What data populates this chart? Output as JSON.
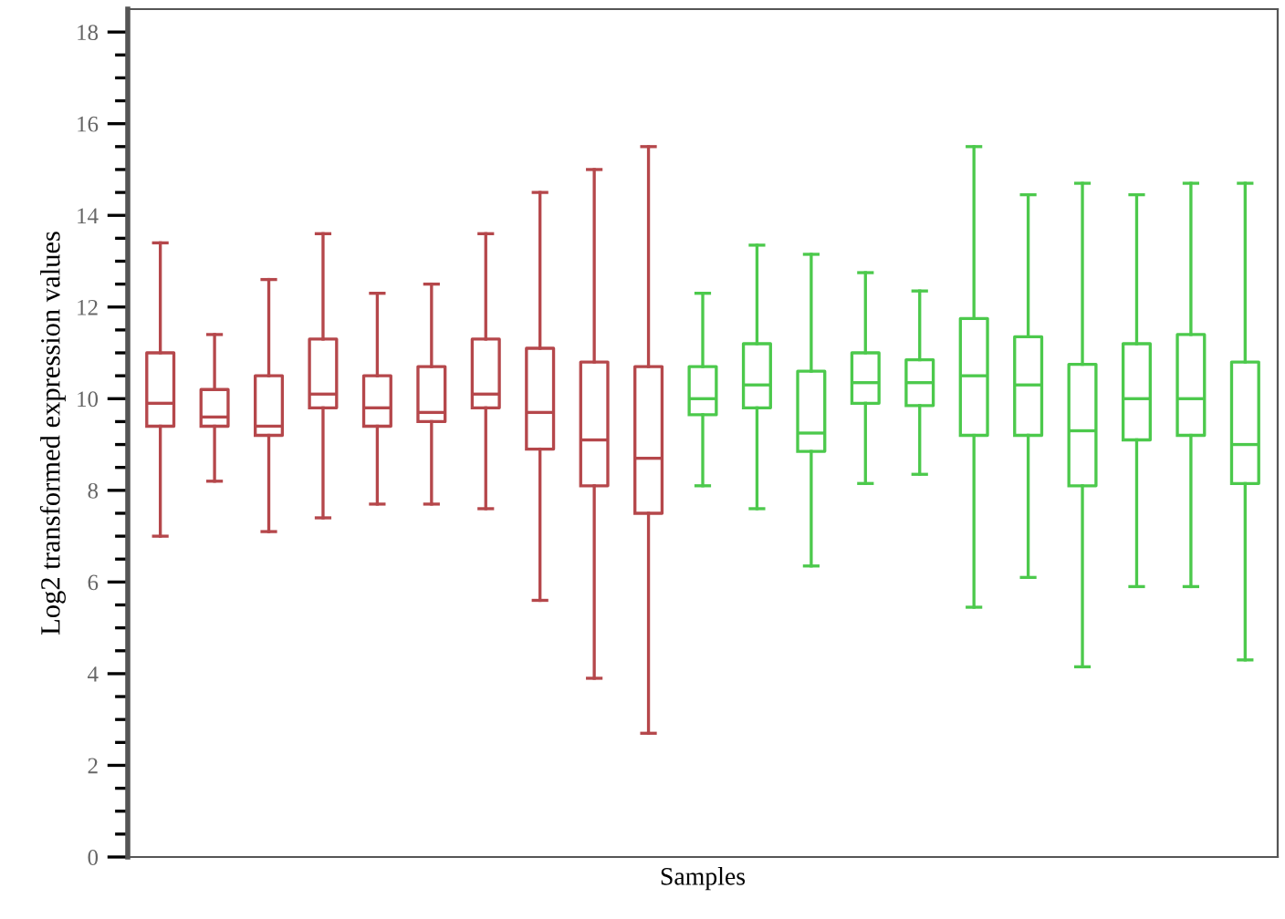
{
  "chart_data": {
    "type": "box",
    "xlabel": "Samples",
    "ylabel": "Log2 transformed expression values",
    "categories": [
      null,
      null,
      null,
      null,
      null,
      null,
      null,
      null,
      null,
      null,
      null,
      null,
      null,
      null,
      null,
      null,
      null,
      null,
      null,
      null,
      null
    ],
    "ylim": [
      0,
      18.5
    ],
    "yticks": [
      0,
      {
        "value": 0.5,
        "label": null
      },
      {
        "value": 1,
        "label": null
      },
      {
        "value": 1.5,
        "label": null
      },
      2,
      {
        "value": 2.5,
        "label": null
      },
      {
        "value": 3,
        "label": null
      },
      {
        "value": 3.5,
        "label": null
      },
      4,
      {
        "value": 4.5,
        "label": null
      },
      {
        "value": 5,
        "label": null
      },
      {
        "value": 5.5,
        "label": null
      },
      6,
      {
        "value": 6.5,
        "label": null
      },
      {
        "value": 7,
        "label": null
      },
      {
        "value": 7.5,
        "label": null
      },
      8,
      {
        "value": 8.5,
        "label": null
      },
      {
        "value": 9,
        "label": null
      },
      {
        "value": 9.5,
        "label": null
      },
      10,
      {
        "value": 10.5,
        "label": null
      },
      {
        "value": 11,
        "label": null
      },
      {
        "value": 11.5,
        "label": null
      },
      12,
      {
        "value": 12.5,
        "label": null
      },
      {
        "value": 13,
        "label": null
      },
      {
        "value": 13.5,
        "label": null
      },
      14,
      {
        "value": 14.5,
        "label": null
      },
      {
        "value": 15,
        "label": null
      },
      {
        "value": 15.5,
        "label": null
      },
      16,
      {
        "value": 16.5,
        "label": null
      },
      {
        "value": 17,
        "label": null
      },
      {
        "value": 17.5,
        "label": null
      },
      18
    ],
    "tick_labels": "y",
    "grid": false,
    "series": [
      {
        "color": "#b5474b",
        "boxes": [
          {
            "low": 7.0,
            "q1": 9.4,
            "median": 9.9,
            "q3": 11.0,
            "high": 13.4
          },
          {
            "low": 8.2,
            "q1": 9.4,
            "median": 9.6,
            "q3": 10.2,
            "high": 11.4
          },
          {
            "low": 7.1,
            "q1": 9.2,
            "median": 9.4,
            "q3": 10.5,
            "high": 12.6
          },
          {
            "low": 7.4,
            "q1": 9.8,
            "median": 10.1,
            "q3": 11.3,
            "high": 13.6
          },
          {
            "low": 7.7,
            "q1": 9.4,
            "median": 9.8,
            "q3": 10.5,
            "high": 12.3
          },
          {
            "low": 7.7,
            "q1": 9.5,
            "median": 9.7,
            "q3": 10.7,
            "high": 12.5
          },
          {
            "low": 7.6,
            "q1": 9.8,
            "median": 10.1,
            "q3": 11.3,
            "high": 13.6
          },
          {
            "low": 5.6,
            "q1": 8.9,
            "median": 9.7,
            "q3": 11.1,
            "high": 14.5
          },
          {
            "low": 3.9,
            "q1": 8.1,
            "median": 9.1,
            "q3": 10.8,
            "high": 15.0
          },
          {
            "low": 2.7,
            "q1": 7.5,
            "median": 8.7,
            "q3": 10.7,
            "high": 15.5
          },
          null,
          null,
          null,
          null,
          null,
          null,
          null,
          null,
          null,
          null,
          null
        ]
      },
      {
        "color": "#4cc94c",
        "boxes": [
          null,
          null,
          null,
          null,
          null,
          null,
          null,
          null,
          null,
          null,
          {
            "low": 8.1,
            "q1": 9.65,
            "median": 10.0,
            "q3": 10.7,
            "high": 12.3
          },
          {
            "low": 7.6,
            "q1": 9.8,
            "median": 10.3,
            "q3": 11.2,
            "high": 13.35
          },
          {
            "low": 6.35,
            "q1": 8.85,
            "median": 9.25,
            "q3": 10.6,
            "high": 13.15
          },
          {
            "low": 8.15,
            "q1": 9.9,
            "median": 10.35,
            "q3": 11.0,
            "high": 12.75
          },
          {
            "low": 8.35,
            "q1": 9.85,
            "median": 10.35,
            "q3": 10.85,
            "high": 12.35
          },
          {
            "low": 5.45,
            "q1": 9.2,
            "median": 10.5,
            "q3": 11.75,
            "high": 15.5
          },
          {
            "low": 6.1,
            "q1": 9.2,
            "median": 10.3,
            "q3": 11.35,
            "high": 14.45
          },
          {
            "low": 4.15,
            "q1": 8.1,
            "median": 9.3,
            "q3": 10.75,
            "high": 14.7
          },
          {
            "low": 5.9,
            "q1": 9.1,
            "median": 10.0,
            "q3": 11.2,
            "high": 14.45
          },
          {
            "low": 5.9,
            "q1": 9.2,
            "median": 10.0,
            "q3": 11.4,
            "high": 14.7
          },
          {
            "low": 4.3,
            "q1": 8.15,
            "median": 9.0,
            "q3": 10.8,
            "high": 14.7
          }
        ]
      }
    ]
  }
}
